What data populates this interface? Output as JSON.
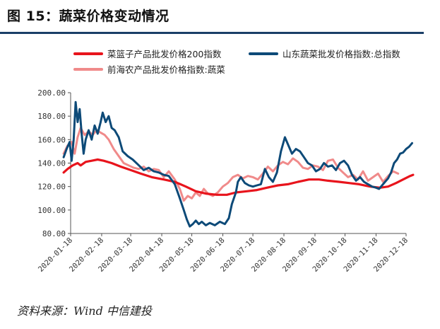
{
  "header": {
    "title": "图 15：蔬菜价格变动情况"
  },
  "source": {
    "text": "资料来源：Wind 中信建投"
  },
  "chart_data": {
    "type": "line",
    "title": "图 15：蔬菜价格变动情况",
    "xlabel": "",
    "ylabel": "",
    "ylim": [
      80,
      200
    ],
    "yticks": [
      "80.00",
      "100.00",
      "120.00",
      "140.00",
      "160.00",
      "180.00",
      "200.00"
    ],
    "xticks": [
      "2020-01-18",
      "2020-02-18",
      "2020-03-18",
      "2020-04-18",
      "2020-05-18",
      "2020-06-18",
      "2020-07-18",
      "2020-08-18",
      "2020-09-18",
      "2020-10-18",
      "2020-11-18",
      "2020-12-18"
    ],
    "grid": false,
    "legend_position": "top",
    "series": [
      {
        "name": "菜篮子产品批发价格200指数",
        "color": "#e8141c",
        "points": [
          [
            "2020-01-11",
            132
          ],
          [
            "2020-01-15",
            135
          ],
          [
            "2020-01-20",
            138
          ],
          [
            "2020-01-25",
            140
          ],
          [
            "2020-01-28",
            138
          ],
          [
            "2020-02-02",
            141
          ],
          [
            "2020-02-08",
            142
          ],
          [
            "2020-02-14",
            143
          ],
          [
            "2020-02-20",
            142
          ],
          [
            "2020-02-28",
            140
          ],
          [
            "2020-03-08",
            137
          ],
          [
            "2020-03-18",
            134
          ],
          [
            "2020-03-28",
            131
          ],
          [
            "2020-04-08",
            128
          ],
          [
            "2020-04-20",
            126
          ],
          [
            "2020-05-01",
            124
          ],
          [
            "2020-05-12",
            120
          ],
          [
            "2020-05-22",
            116
          ],
          [
            "2020-06-01",
            114
          ],
          [
            "2020-06-12",
            113
          ],
          [
            "2020-06-22",
            113
          ],
          [
            "2020-07-01",
            115
          ],
          [
            "2020-07-12",
            116
          ],
          [
            "2020-07-22",
            117
          ],
          [
            "2020-08-01",
            119
          ],
          [
            "2020-08-12",
            121
          ],
          [
            "2020-08-22",
            122
          ],
          [
            "2020-09-01",
            124
          ],
          [
            "2020-09-12",
            126
          ],
          [
            "2020-09-22",
            126
          ],
          [
            "2020-10-01",
            125
          ],
          [
            "2020-10-12",
            124
          ],
          [
            "2020-10-22",
            123
          ],
          [
            "2020-11-01",
            122
          ],
          [
            "2020-11-12",
            120
          ],
          [
            "2020-11-22",
            119
          ],
          [
            "2020-11-30",
            120
          ],
          [
            "2020-12-08",
            123
          ],
          [
            "2020-12-15",
            126
          ],
          [
            "2020-12-22",
            129
          ],
          [
            "2020-12-25",
            130
          ]
        ]
      },
      {
        "name": "山东蔬菜批发价格指数:总指数",
        "color": "#0d4a78",
        "points": [
          [
            "2020-01-11",
            145
          ],
          [
            "2020-01-14",
            152
          ],
          [
            "2020-01-17",
            158
          ],
          [
            "2020-01-19",
            142
          ],
          [
            "2020-01-21",
            160
          ],
          [
            "2020-01-23",
            192
          ],
          [
            "2020-01-25",
            175
          ],
          [
            "2020-01-27",
            186
          ],
          [
            "2020-01-29",
            165
          ],
          [
            "2020-01-31",
            148
          ],
          [
            "2020-02-02",
            160
          ],
          [
            "2020-02-05",
            168
          ],
          [
            "2020-02-08",
            160
          ],
          [
            "2020-02-11",
            172
          ],
          [
            "2020-02-14",
            165
          ],
          [
            "2020-02-17",
            175
          ],
          [
            "2020-02-19",
            183
          ],
          [
            "2020-02-22",
            175
          ],
          [
            "2020-02-25",
            180
          ],
          [
            "2020-02-28",
            170
          ],
          [
            "2020-03-02",
            168
          ],
          [
            "2020-03-06",
            162
          ],
          [
            "2020-03-10",
            150
          ],
          [
            "2020-03-15",
            146
          ],
          [
            "2020-03-20",
            143
          ],
          [
            "2020-03-25",
            139
          ],
          [
            "2020-03-31",
            134
          ],
          [
            "2020-04-05",
            136
          ],
          [
            "2020-04-10",
            133
          ],
          [
            "2020-04-15",
            132
          ],
          [
            "2020-04-20",
            130
          ],
          [
            "2020-04-25",
            129
          ],
          [
            "2020-05-01",
            122
          ],
          [
            "2020-05-06",
            110
          ],
          [
            "2020-05-10",
            100
          ],
          [
            "2020-05-13",
            92
          ],
          [
            "2020-05-16",
            86
          ],
          [
            "2020-05-19",
            88
          ],
          [
            "2020-05-22",
            91
          ],
          [
            "2020-05-25",
            88
          ],
          [
            "2020-05-28",
            90
          ],
          [
            "2020-06-01",
            87
          ],
          [
            "2020-06-05",
            89
          ],
          [
            "2020-06-10",
            87
          ],
          [
            "2020-06-15",
            90
          ],
          [
            "2020-06-20",
            88
          ],
          [
            "2020-06-24",
            93
          ],
          [
            "2020-06-27",
            105
          ],
          [
            "2020-07-01",
            115
          ],
          [
            "2020-07-03",
            124
          ],
          [
            "2020-07-06",
            128
          ],
          [
            "2020-07-10",
            123
          ],
          [
            "2020-07-14",
            121
          ],
          [
            "2020-07-18",
            120
          ],
          [
            "2020-07-22",
            121
          ],
          [
            "2020-07-26",
            122
          ],
          [
            "2020-07-30",
            135
          ],
          [
            "2020-08-03",
            128
          ],
          [
            "2020-08-07",
            124
          ],
          [
            "2020-08-11",
            132
          ],
          [
            "2020-08-15",
            150
          ],
          [
            "2020-08-19",
            162
          ],
          [
            "2020-08-22",
            156
          ],
          [
            "2020-08-26",
            148
          ],
          [
            "2020-08-30",
            152
          ],
          [
            "2020-09-03",
            150
          ],
          [
            "2020-09-07",
            145
          ],
          [
            "2020-09-11",
            140
          ],
          [
            "2020-09-15",
            138
          ],
          [
            "2020-09-19",
            133
          ],
          [
            "2020-09-23",
            135
          ],
          [
            "2020-09-27",
            140
          ],
          [
            "2020-10-01",
            137
          ],
          [
            "2020-10-05",
            138
          ],
          [
            "2020-10-09",
            134
          ],
          [
            "2020-10-13",
            140
          ],
          [
            "2020-10-17",
            142
          ],
          [
            "2020-10-21",
            138
          ],
          [
            "2020-10-25",
            130
          ],
          [
            "2020-10-29",
            125
          ],
          [
            "2020-11-02",
            128
          ],
          [
            "2020-11-06",
            124
          ],
          [
            "2020-11-10",
            122
          ],
          [
            "2020-11-14",
            120
          ],
          [
            "2020-11-18",
            119
          ],
          [
            "2020-11-21",
            118
          ],
          [
            "2020-11-24",
            121
          ],
          [
            "2020-11-27",
            124
          ],
          [
            "2020-11-30",
            127
          ],
          [
            "2020-12-03",
            132
          ],
          [
            "2020-12-06",
            140
          ],
          [
            "2020-12-09",
            143
          ],
          [
            "2020-12-12",
            148
          ],
          [
            "2020-12-15",
            149
          ],
          [
            "2020-12-18",
            152
          ],
          [
            "2020-12-21",
            154
          ],
          [
            "2020-12-24",
            157
          ]
        ]
      },
      {
        "name": "前海农产品批发价格指数:蔬菜",
        "color": "#f08a8a",
        "points": [
          [
            "2020-01-11",
            148
          ],
          [
            "2020-01-15",
            155
          ],
          [
            "2020-01-19",
            158
          ],
          [
            "2020-01-22",
            148
          ],
          [
            "2020-01-25",
            162
          ],
          [
            "2020-01-28",
            170
          ],
          [
            "2020-02-01",
            164
          ],
          [
            "2020-02-05",
            167
          ],
          [
            "2020-02-09",
            164
          ],
          [
            "2020-02-13",
            168
          ],
          [
            "2020-02-17",
            166
          ],
          [
            "2020-02-21",
            164
          ],
          [
            "2020-02-25",
            160
          ],
          [
            "2020-03-01",
            152
          ],
          [
            "2020-03-06",
            146
          ],
          [
            "2020-03-11",
            140
          ],
          [
            "2020-03-16",
            138
          ],
          [
            "2020-03-21",
            136
          ],
          [
            "2020-03-26",
            135
          ],
          [
            "2020-03-31",
            137
          ],
          [
            "2020-04-05",
            133
          ],
          [
            "2020-04-10",
            135
          ],
          [
            "2020-04-15",
            134
          ],
          [
            "2020-04-20",
            128
          ],
          [
            "2020-04-25",
            133
          ],
          [
            "2020-05-01",
            126
          ],
          [
            "2020-05-06",
            118
          ],
          [
            "2020-05-10",
            108
          ],
          [
            "2020-05-14",
            112
          ],
          [
            "2020-05-18",
            110
          ],
          [
            "2020-05-22",
            115
          ],
          [
            "2020-05-26",
            112
          ],
          [
            "2020-05-30",
            118
          ],
          [
            "2020-06-03",
            114
          ],
          [
            "2020-06-08",
            112
          ],
          [
            "2020-06-13",
            115
          ],
          [
            "2020-06-18",
            120
          ],
          [
            "2020-06-23",
            123
          ],
          [
            "2020-06-28",
            128
          ],
          [
            "2020-07-03",
            130
          ],
          [
            "2020-07-08",
            127
          ],
          [
            "2020-07-13",
            129
          ],
          [
            "2020-07-18",
            128
          ],
          [
            "2020-07-23",
            126
          ],
          [
            "2020-07-28",
            131
          ],
          [
            "2020-08-02",
            137
          ],
          [
            "2020-08-07",
            133
          ],
          [
            "2020-08-12",
            138
          ],
          [
            "2020-08-17",
            141
          ],
          [
            "2020-08-22",
            139
          ],
          [
            "2020-08-27",
            144
          ],
          [
            "2020-09-01",
            141
          ],
          [
            "2020-09-06",
            136
          ],
          [
            "2020-09-11",
            135
          ],
          [
            "2020-09-16",
            138
          ],
          [
            "2020-09-21",
            137
          ],
          [
            "2020-09-26",
            134
          ],
          [
            "2020-10-01",
            142
          ],
          [
            "2020-10-06",
            143
          ],
          [
            "2020-10-11",
            136
          ],
          [
            "2020-10-16",
            132
          ],
          [
            "2020-10-21",
            128
          ],
          [
            "2020-10-26",
            130
          ],
          [
            "2020-10-31",
            126
          ],
          [
            "2020-11-05",
            133
          ],
          [
            "2020-11-10",
            125
          ],
          [
            "2020-11-15",
            128
          ],
          [
            "2020-11-20",
            131
          ],
          [
            "2020-11-25",
            124
          ],
          [
            "2020-11-30",
            129
          ],
          [
            "2020-12-05",
            133
          ],
          [
            "2020-12-10",
            131
          ]
        ]
      }
    ]
  }
}
